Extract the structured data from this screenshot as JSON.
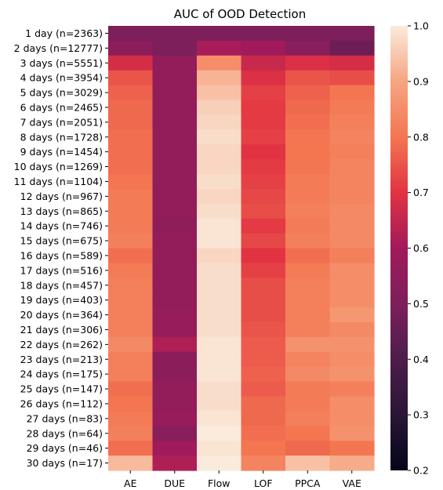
{
  "chart_data": {
    "type": "heatmap",
    "title": "AUC of OOD Detection",
    "xlabel": "",
    "ylabel": "",
    "colormap": "rocket",
    "vmin": 0.2,
    "vmax": 1.0,
    "colorbar_ticks": [
      "0.2",
      "0.3",
      "0.4",
      "0.5",
      "0.6",
      "0.7",
      "0.8",
      "0.9",
      "1.0"
    ],
    "columns": [
      "AE",
      "DUE",
      "Flow",
      "LOF",
      "PPCA",
      "VAE"
    ],
    "rows": [
      "1 day (n=2363)",
      "2 days (n=12777)",
      "3 days (n=5551)",
      "4 days (n=3954)",
      "5 days (n=3029)",
      "6 days (n=2465)",
      "7 days (n=2051)",
      "8 days (n=1728)",
      "9 days (n=1454)",
      "10 days (n=1269)",
      "11 days (n=1104)",
      "12 days (n=967)",
      "13 days (n=865)",
      "14 days (n=746)",
      "15 days (n=675)",
      "16 days (n=589)",
      "17 days (n=516)",
      "18 days (n=457)",
      "19 days (n=403)",
      "20 days (n=364)",
      "21 days (n=306)",
      "22 days (n=262)",
      "23 days (n=213)",
      "24 days (n=175)",
      "25 days (n=147)",
      "26 days (n=112)",
      "27 days (n=83)",
      "28 days (n=64)",
      "29 days (n=46)",
      "30 days (n=17)"
    ],
    "values": [
      [
        0.5,
        0.5,
        0.5,
        0.5,
        0.5,
        0.5
      ],
      [
        0.54,
        0.5,
        0.61,
        0.6,
        0.53,
        0.47
      ],
      [
        0.68,
        0.56,
        0.85,
        0.66,
        0.69,
        0.68
      ],
      [
        0.75,
        0.56,
        0.92,
        0.69,
        0.75,
        0.74
      ],
      [
        0.77,
        0.56,
        0.94,
        0.72,
        0.77,
        0.8
      ],
      [
        0.78,
        0.56,
        0.96,
        0.71,
        0.78,
        0.81
      ],
      [
        0.78,
        0.56,
        0.97,
        0.71,
        0.79,
        0.82
      ],
      [
        0.79,
        0.56,
        0.98,
        0.72,
        0.8,
        0.83
      ],
      [
        0.79,
        0.56,
        0.97,
        0.7,
        0.8,
        0.82
      ],
      [
        0.79,
        0.56,
        0.97,
        0.71,
        0.8,
        0.83
      ],
      [
        0.8,
        0.56,
        0.98,
        0.72,
        0.81,
        0.83
      ],
      [
        0.81,
        0.56,
        0.97,
        0.73,
        0.81,
        0.83
      ],
      [
        0.81,
        0.56,
        0.98,
        0.74,
        0.82,
        0.84
      ],
      [
        0.81,
        0.55,
        0.99,
        0.71,
        0.81,
        0.84
      ],
      [
        0.82,
        0.56,
        0.99,
        0.73,
        0.82,
        0.84
      ],
      [
        0.79,
        0.56,
        0.97,
        0.7,
        0.79,
        0.82
      ],
      [
        0.81,
        0.56,
        0.98,
        0.72,
        0.81,
        0.85
      ],
      [
        0.82,
        0.56,
        0.98,
        0.74,
        0.82,
        0.85
      ],
      [
        0.82,
        0.56,
        0.98,
        0.74,
        0.82,
        0.85
      ],
      [
        0.82,
        0.57,
        0.98,
        0.74,
        0.82,
        0.87
      ],
      [
        0.82,
        0.57,
        0.98,
        0.75,
        0.82,
        0.84
      ],
      [
        0.84,
        0.62,
        0.99,
        0.76,
        0.86,
        0.86
      ],
      [
        0.82,
        0.54,
        0.99,
        0.76,
        0.83,
        0.85
      ],
      [
        0.82,
        0.54,
        0.99,
        0.77,
        0.84,
        0.86
      ],
      [
        0.79,
        0.56,
        0.98,
        0.76,
        0.81,
        0.82
      ],
      [
        0.8,
        0.56,
        0.98,
        0.78,
        0.81,
        0.85
      ],
      [
        0.81,
        0.57,
        0.99,
        0.78,
        0.82,
        0.85
      ],
      [
        0.82,
        0.53,
        1.0,
        0.79,
        0.8,
        0.86
      ],
      [
        0.79,
        0.6,
        0.99,
        0.8,
        0.78,
        0.8
      ],
      [
        0.93,
        0.62,
        1.0,
        0.83,
        0.94,
        0.91
      ]
    ]
  }
}
